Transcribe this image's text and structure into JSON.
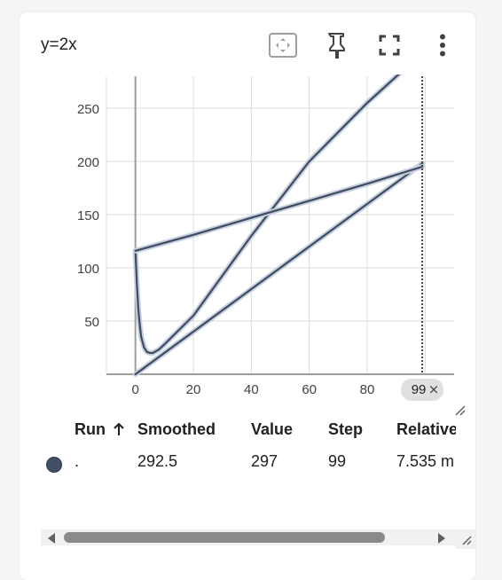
{
  "card": {
    "title": "y=2x",
    "toolbar": {
      "fit_icon": "fit-to-data-icon",
      "pin_icon": "pin-icon",
      "fullscreen_icon": "fullscreen-icon",
      "more_icon": "more-vert-icon"
    }
  },
  "chart_data": {
    "type": "line",
    "title": "",
    "xlabel": "",
    "ylabel": "",
    "xlim": [
      -10,
      110
    ],
    "ylim": [
      0,
      280
    ],
    "x_ticks": [
      "0",
      "20",
      "40",
      "60",
      "80"
    ],
    "y_ticks": [
      "50",
      "100",
      "150",
      "200",
      "250"
    ],
    "grid": true,
    "hover_step_label": "99",
    "series": [
      {
        "x": [
          0,
          1,
          2,
          3,
          4,
          5,
          6,
          8,
          10,
          20,
          40,
          60,
          80,
          99
        ],
        "y": [
          0,
          2,
          4,
          6,
          8,
          10,
          12,
          16,
          20,
          40,
          80,
          120,
          160,
          198
        ]
      },
      {
        "x": [
          0,
          0.5,
          1,
          1.5,
          2,
          3,
          4,
          5,
          6,
          8,
          10,
          20,
          40,
          60,
          80,
          95
        ],
        "y": [
          116,
          85,
          62,
          46,
          35,
          25,
          21,
          20,
          20,
          23,
          28,
          55,
          130,
          200,
          255,
          292
        ]
      },
      {
        "x": [
          0,
          20,
          40,
          60,
          80,
          99
        ],
        "y": [
          116,
          131,
          147,
          163,
          179,
          195
        ]
      }
    ],
    "colors": {
      "line": "#3f4b5f",
      "halo": "#c5cfdf",
      "axis": "#9e9e9e",
      "grid": "#dcdcdc",
      "cursor": "#424242"
    }
  },
  "table": {
    "headers": {
      "run": "Run",
      "sort_icon": "arrow-up-icon",
      "smoothed": "Smoothed",
      "value": "Value",
      "step": "Step",
      "relative": "Relative"
    },
    "rows": [
      {
        "color": "#425066",
        "run": ".",
        "smoothed": "292.5",
        "value": "297",
        "step": "99",
        "relative": "7.535 m"
      }
    ]
  },
  "scrollbar": {
    "left_icon": "arrow-left-icon",
    "right_icon": "arrow-right-icon",
    "resize_icon": "resize-icon"
  }
}
